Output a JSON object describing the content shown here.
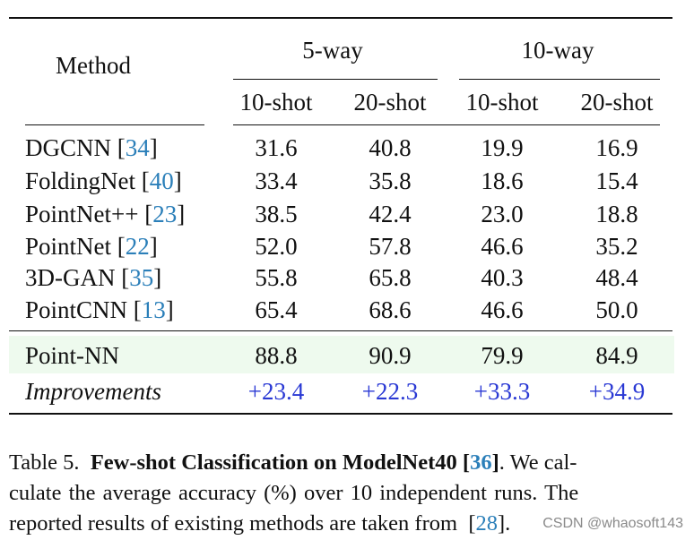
{
  "table": {
    "method_header": "Method",
    "group_headers": [
      "5-way",
      "10-way"
    ],
    "sub_headers": [
      "10-shot",
      "20-shot",
      "10-shot",
      "20-shot"
    ],
    "rows": [
      {
        "method": "DGCNN",
        "cite": "34",
        "values": [
          "31.6",
          "40.8",
          "19.9",
          "16.9"
        ]
      },
      {
        "method": "FoldingNet",
        "cite": "40",
        "values": [
          "33.4",
          "35.8",
          "18.6",
          "15.4"
        ]
      },
      {
        "method": "PointNet++",
        "cite": "23",
        "values": [
          "38.5",
          "42.4",
          "23.0",
          "18.8"
        ]
      },
      {
        "method": "PointNet",
        "cite": "22",
        "values": [
          "52.0",
          "57.8",
          "46.6",
          "35.2"
        ]
      },
      {
        "method": "3D-GAN",
        "cite": "35",
        "values": [
          "55.8",
          "65.8",
          "40.3",
          "48.4"
        ]
      },
      {
        "method": "PointCNN",
        "cite": "13",
        "values": [
          "65.4",
          "68.6",
          "46.6",
          "50.0"
        ]
      }
    ],
    "ours": {
      "method": "Point-NN",
      "values": [
        "88.8",
        "90.9",
        "79.9",
        "84.9"
      ]
    },
    "improvements": {
      "label": "Improvements",
      "values": [
        "+23.4",
        "+22.3",
        "+33.3",
        "+34.9"
      ]
    }
  },
  "caption": {
    "prefix": "Table 5.",
    "bold_title": "Few-shot Classification on ModelNet40",
    "title_cite": "36",
    "line1_rest": ". We cal-",
    "line2": "culate the average accuracy (%) over 10 independent runs. The",
    "line3": "reported results of existing methods are taken from",
    "line3_cite": "28"
  },
  "watermark": "CSDN @whaosoft143",
  "colors": {
    "improvement": "#2a39d4",
    "citation": "#2b7fb9",
    "highlight_row": "#eefaee"
  }
}
